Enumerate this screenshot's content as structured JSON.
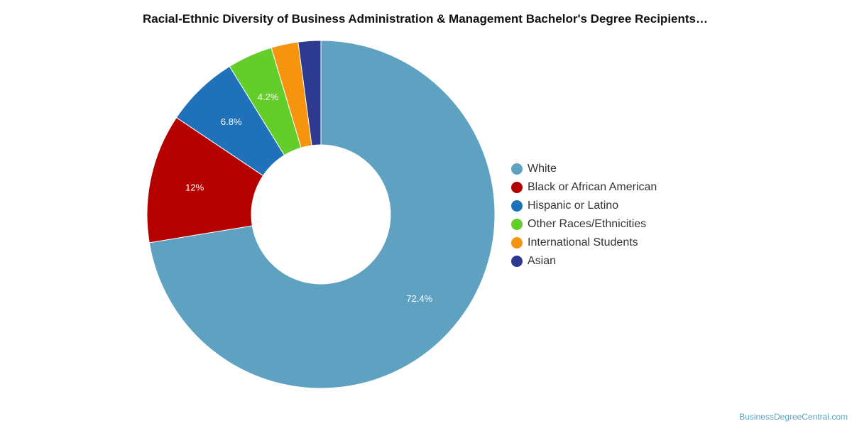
{
  "chart_data": {
    "type": "pie",
    "variant": "donut",
    "title": "Racial-Ethnic Diversity of Business Administration & Management Bachelor's Degree Recipients…",
    "categories": [
      "White",
      "Black or African American",
      "Hispanic or Latino",
      "Other Races/Ethnicities",
      "International Students",
      "Asian"
    ],
    "values": [
      72.4,
      12,
      6.8,
      4.2,
      2.5,
      2.1
    ],
    "data_labels": [
      "72.4%",
      "12%",
      "6.8%",
      "4.2%",
      "",
      ""
    ],
    "colors": [
      "#5ea1c0",
      "#b50000",
      "#1f72ba",
      "#63cd2a",
      "#f6940e",
      "#2e3a8f"
    ],
    "legend_position": "right"
  },
  "footer": {
    "source": "BusinessDegreeCentral.com"
  }
}
